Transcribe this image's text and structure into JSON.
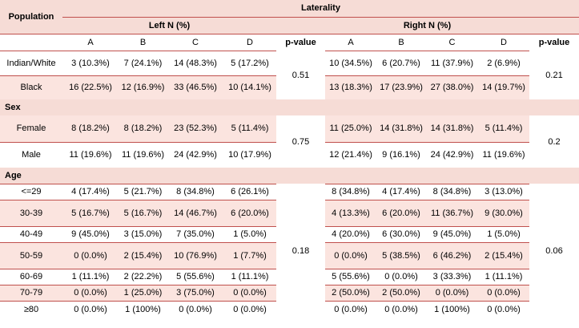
{
  "header": {
    "population": "Population",
    "laterality": "Laterality",
    "left": "Left N (%)",
    "right": "Right N (%)",
    "cols": [
      "A",
      "B",
      "C",
      "D"
    ],
    "pvalue": "p-value"
  },
  "sections": {
    "sex": "Sex",
    "age": "Age"
  },
  "pvalues": {
    "population_left": "0.51",
    "population_right": "0.21",
    "sex_left": "0.75",
    "sex_right": "0.2",
    "age_left": "0.18",
    "age_right": "0.06"
  },
  "rows": {
    "population": [
      {
        "label": "Indian/White",
        "left": [
          "3 (10.3%)",
          "7 (24.1%)",
          "14 (48.3%)",
          "5 (17.2%)"
        ],
        "right": [
          "10 (34.5%)",
          "6 (20.7%)",
          "11 (37.9%)",
          "2 (6.9%)"
        ]
      },
      {
        "label": "Black",
        "left": [
          "16 (22.5%)",
          "12 (16.9%)",
          "33 (46.5%)",
          "10 (14.1%)"
        ],
        "right": [
          "13 (18.3%)",
          "17 (23.9%)",
          "27 (38.0%)",
          "14 (19.7%)"
        ]
      }
    ],
    "sex": [
      {
        "label": "Female",
        "left": [
          "8 (18.2%)",
          "8 (18.2%)",
          "23 (52.3%)",
          "5 (11.4%)"
        ],
        "right": [
          "11 (25.0%)",
          "14 (31.8%)",
          "14 (31.8%)",
          "5 (11.4%)"
        ]
      },
      {
        "label": "Male",
        "left": [
          "11 (19.6%)",
          "11 (19.6%)",
          "24 (42.9%)",
          "10 (17.9%)"
        ],
        "right": [
          "12 (21.4%)",
          "9 (16.1%)",
          "24 (42.9%)",
          "11 (19.6%)"
        ]
      }
    ],
    "age": [
      {
        "label": "<=29",
        "left": [
          "4 (17.4%)",
          "5 (21.7%)",
          "8 (34.8%)",
          "6 (26.1%)"
        ],
        "right": [
          "8 (34.8%)",
          "4 (17.4%)",
          "8 (34.8%)",
          "3 (13.0%)"
        ]
      },
      {
        "label": "30-39",
        "left": [
          "5 (16.7%)",
          "5 (16.7%)",
          "14 (46.7%)",
          "6 (20.0%)"
        ],
        "right": [
          "4 (13.3%)",
          "6 (20.0%)",
          "11 (36.7%)",
          "9 (30.0%)"
        ]
      },
      {
        "label": "40-49",
        "left": [
          "9 (45.0%)",
          "3 (15.0%)",
          "7 (35.0%)",
          "1 (5.0%)"
        ],
        "right": [
          "4 (20.0%)",
          "6 (30.0%)",
          "9 (45.0%)",
          "1 (5.0%)"
        ]
      },
      {
        "label": "50-59",
        "left": [
          "0 (0.0%)",
          "2 (15.4%)",
          "10 (76.9%)",
          "1 (7.7%)"
        ],
        "right": [
          "0 (0.0%)",
          "5 (38.5%)",
          "6 (46.2%)",
          "2 (15.4%)"
        ]
      },
      {
        "label": "60-69",
        "left": [
          "1 (11.1%)",
          "2 (22.2%)",
          "5 (55.6%)",
          "1 (11.1%)"
        ],
        "right": [
          "5 (55.6%)",
          "0 (0.0%)",
          "3 (33.3%)",
          "1 (11.1%)"
        ]
      },
      {
        "label": "70-79",
        "left": [
          "0 (0.0%)",
          "1 (25.0%)",
          "3 (75.0%)",
          "0 (0.0%)"
        ],
        "right": [
          "2 (50.0%)",
          "2 (50.0%)",
          "0 (0.0%)",
          "0 (0.0%)"
        ]
      },
      {
        "label": "≥80",
        "left": [
          "0 (0.0%)",
          "1 (100%)",
          "0 (0.0%)",
          "0 (0.0%)"
        ],
        "right": [
          "0 (0.0%)",
          "0 (0.0%)",
          "1 (100%)",
          "0 (0.0%)"
        ]
      }
    ]
  }
}
